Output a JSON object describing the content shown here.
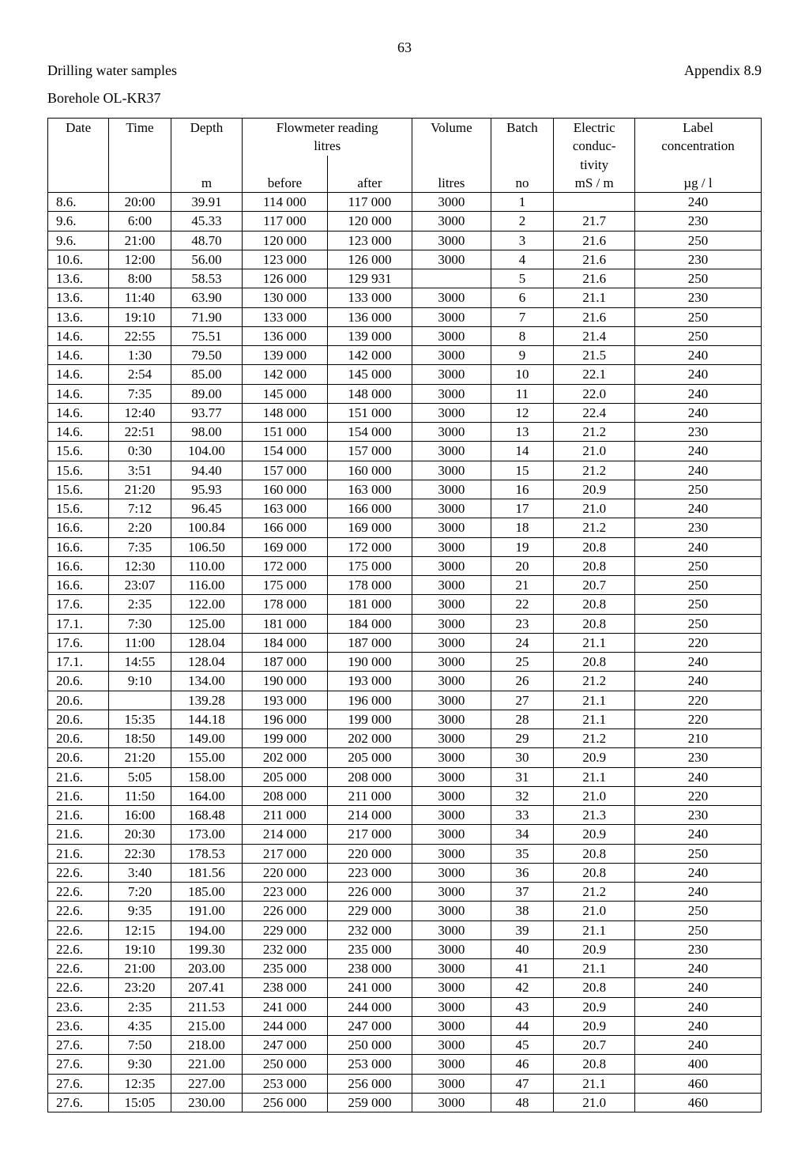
{
  "page_number": "63",
  "title_left": "Drilling water samples",
  "title_right": "Appendix 8.9",
  "subtitle": "Borehole OL-KR37",
  "columns": {
    "date": "Date",
    "time": "Time",
    "depth": "Depth",
    "flow": "Flowmeter reading",
    "flow_unit_row": "litres",
    "flow_before": "before",
    "flow_after": "after",
    "volume": "Volume",
    "batch": "Batch",
    "electric": "Electric",
    "electric2": "conduc-",
    "electric3": "tivity",
    "label": "Label",
    "label2": "concentration",
    "depth_unit": "m",
    "volume_unit": "litres",
    "batch_unit": "no",
    "electric_unit": "mS / m",
    "label_unit": "µg / l"
  },
  "rows": [
    [
      "8.6.",
      "20:00",
      "39.91",
      "114 000",
      "117 000",
      "3000",
      "1",
      "",
      "240"
    ],
    [
      "9.6.",
      "6:00",
      "45.33",
      "117 000",
      "120 000",
      "3000",
      "2",
      "21.7",
      "230"
    ],
    [
      "9.6.",
      "21:00",
      "48.70",
      "120 000",
      "123 000",
      "3000",
      "3",
      "21.6",
      "250"
    ],
    [
      "10.6.",
      "12:00",
      "56.00",
      "123 000",
      "126 000",
      "3000",
      "4",
      "21.6",
      "230"
    ],
    [
      "13.6.",
      "8:00",
      "58.53",
      "126 000",
      "129 931",
      "",
      "5",
      "21.6",
      "250"
    ],
    [
      "13.6.",
      "11:40",
      "63.90",
      "130 000",
      "133 000",
      "3000",
      "6",
      "21.1",
      "230"
    ],
    [
      "13.6.",
      "19:10",
      "71.90",
      "133 000",
      "136 000",
      "3000",
      "7",
      "21.6",
      "250"
    ],
    [
      "14.6.",
      "22:55",
      "75.51",
      "136 000",
      "139 000",
      "3000",
      "8",
      "21.4",
      "250"
    ],
    [
      "14.6.",
      "1:30",
      "79.50",
      "139 000",
      "142 000",
      "3000",
      "9",
      "21.5",
      "240"
    ],
    [
      "14.6.",
      "2:54",
      "85.00",
      "142 000",
      "145 000",
      "3000",
      "10",
      "22.1",
      "240"
    ],
    [
      "14.6.",
      "7:35",
      "89.00",
      "145 000",
      "148 000",
      "3000",
      "11",
      "22.0",
      "240"
    ],
    [
      "14.6.",
      "12:40",
      "93.77",
      "148 000",
      "151 000",
      "3000",
      "12",
      "22.4",
      "240"
    ],
    [
      "14.6.",
      "22:51",
      "98.00",
      "151 000",
      "154 000",
      "3000",
      "13",
      "21.2",
      "230"
    ],
    [
      "15.6.",
      "0:30",
      "104.00",
      "154 000",
      "157 000",
      "3000",
      "14",
      "21.0",
      "240"
    ],
    [
      "15.6.",
      "3:51",
      "94.40",
      "157 000",
      "160 000",
      "3000",
      "15",
      "21.2",
      "240"
    ],
    [
      "15.6.",
      "21:20",
      "95.93",
      "160 000",
      "163 000",
      "3000",
      "16",
      "20.9",
      "250"
    ],
    [
      "15.6.",
      "7:12",
      "96.45",
      "163 000",
      "166 000",
      "3000",
      "17",
      "21.0",
      "240"
    ],
    [
      "16.6.",
      "2:20",
      "100.84",
      "166 000",
      "169 000",
      "3000",
      "18",
      "21.2",
      "230"
    ],
    [
      "16.6.",
      "7:35",
      "106.50",
      "169 000",
      "172 000",
      "3000",
      "19",
      "20.8",
      "240"
    ],
    [
      "16.6.",
      "12:30",
      "110.00",
      "172 000",
      "175 000",
      "3000",
      "20",
      "20.8",
      "250"
    ],
    [
      "16.6.",
      "23:07",
      "116.00",
      "175 000",
      "178 000",
      "3000",
      "21",
      "20.7",
      "250"
    ],
    [
      "17.6.",
      "2:35",
      "122.00",
      "178 000",
      "181 000",
      "3000",
      "22",
      "20.8",
      "250"
    ],
    [
      "17.1.",
      "7:30",
      "125.00",
      "181 000",
      "184 000",
      "3000",
      "23",
      "20.8",
      "250"
    ],
    [
      "17.6.",
      "11:00",
      "128.04",
      "184 000",
      "187 000",
      "3000",
      "24",
      "21.1",
      "220"
    ],
    [
      "17.1.",
      "14:55",
      "128.04",
      "187 000",
      "190 000",
      "3000",
      "25",
      "20.8",
      "240"
    ],
    [
      "20.6.",
      "9:10",
      "134.00",
      "190 000",
      "193 000",
      "3000",
      "26",
      "21.2",
      "240"
    ],
    [
      "20.6.",
      "",
      "139.28",
      "193 000",
      "196 000",
      "3000",
      "27",
      "21.1",
      "220"
    ],
    [
      "20.6.",
      "15:35",
      "144.18",
      "196 000",
      "199 000",
      "3000",
      "28",
      "21.1",
      "220"
    ],
    [
      "20.6.",
      "18:50",
      "149.00",
      "199 000",
      "202 000",
      "3000",
      "29",
      "21.2",
      "210"
    ],
    [
      "20.6.",
      "21:20",
      "155.00",
      "202 000",
      "205 000",
      "3000",
      "30",
      "20.9",
      "230"
    ],
    [
      "21.6.",
      "5:05",
      "158.00",
      "205 000",
      "208 000",
      "3000",
      "31",
      "21.1",
      "240"
    ],
    [
      "21.6.",
      "11:50",
      "164.00",
      "208 000",
      "211 000",
      "3000",
      "32",
      "21.0",
      "220"
    ],
    [
      "21.6.",
      "16:00",
      "168.48",
      "211 000",
      "214 000",
      "3000",
      "33",
      "21.3",
      "230"
    ],
    [
      "21.6.",
      "20:30",
      "173.00",
      "214 000",
      "217 000",
      "3000",
      "34",
      "20.9",
      "240"
    ],
    [
      "21.6.",
      "22:30",
      "178.53",
      "217 000",
      "220 000",
      "3000",
      "35",
      "20.8",
      "250"
    ],
    [
      "22.6.",
      "3:40",
      "181.56",
      "220 000",
      "223 000",
      "3000",
      "36",
      "20.8",
      "240"
    ],
    [
      "22.6.",
      "7:20",
      "185.00",
      "223 000",
      "226 000",
      "3000",
      "37",
      "21.2",
      "240"
    ],
    [
      "22.6.",
      "9:35",
      "191.00",
      "226 000",
      "229 000",
      "3000",
      "38",
      "21.0",
      "250"
    ],
    [
      "22.6.",
      "12:15",
      "194.00",
      "229 000",
      "232 000",
      "3000",
      "39",
      "21.1",
      "250"
    ],
    [
      "22.6.",
      "19:10",
      "199.30",
      "232 000",
      "235 000",
      "3000",
      "40",
      "20.9",
      "230"
    ],
    [
      "22.6.",
      "21:00",
      "203.00",
      "235 000",
      "238 000",
      "3000",
      "41",
      "21.1",
      "240"
    ],
    [
      "22.6.",
      "23:20",
      "207.41",
      "238 000",
      "241 000",
      "3000",
      "42",
      "20.8",
      "240"
    ],
    [
      "23.6.",
      "2:35",
      "211.53",
      "241 000",
      "244 000",
      "3000",
      "43",
      "20.9",
      "240"
    ],
    [
      "23.6.",
      "4:35",
      "215.00",
      "244 000",
      "247 000",
      "3000",
      "44",
      "20.9",
      "240"
    ],
    [
      "27.6.",
      "7:50",
      "218.00",
      "247 000",
      "250 000",
      "3000",
      "45",
      "20.7",
      "240"
    ],
    [
      "27.6.",
      "9:30",
      "221.00",
      "250 000",
      "253 000",
      "3000",
      "46",
      "20.8",
      "400"
    ],
    [
      "27.6.",
      "12:35",
      "227.00",
      "253 000",
      "256 000",
      "3000",
      "47",
      "21.1",
      "460"
    ],
    [
      "27.6.",
      "15:05",
      "230.00",
      "256 000",
      "259 000",
      "3000",
      "48",
      "21.0",
      "460"
    ]
  ]
}
